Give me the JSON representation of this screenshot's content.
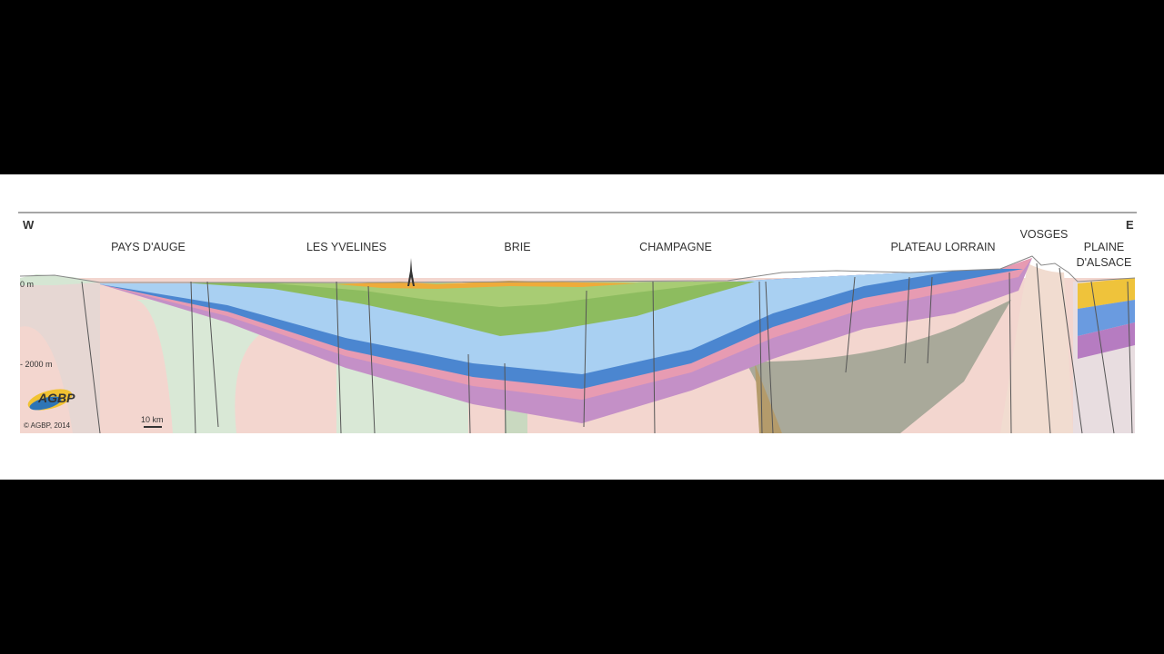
{
  "compass": {
    "west": "W",
    "east": "E"
  },
  "regions": [
    [
      "PAYS D'AUGE"
    ],
    [
      "LES YVELINES"
    ],
    [
      "BRIE"
    ],
    [
      "CHAMPAGNE"
    ],
    [
      "PLATEAU LORRAIN"
    ],
    [
      "VOSGES"
    ],
    [
      "PLAINE",
      "D'ALSACE"
    ]
  ],
  "depth_labels": [
    "0 m",
    "- 2000 m"
  ],
  "scale_bar": "10 km",
  "logo": "AGBP",
  "copyright": "© AGBP, 2014"
}
